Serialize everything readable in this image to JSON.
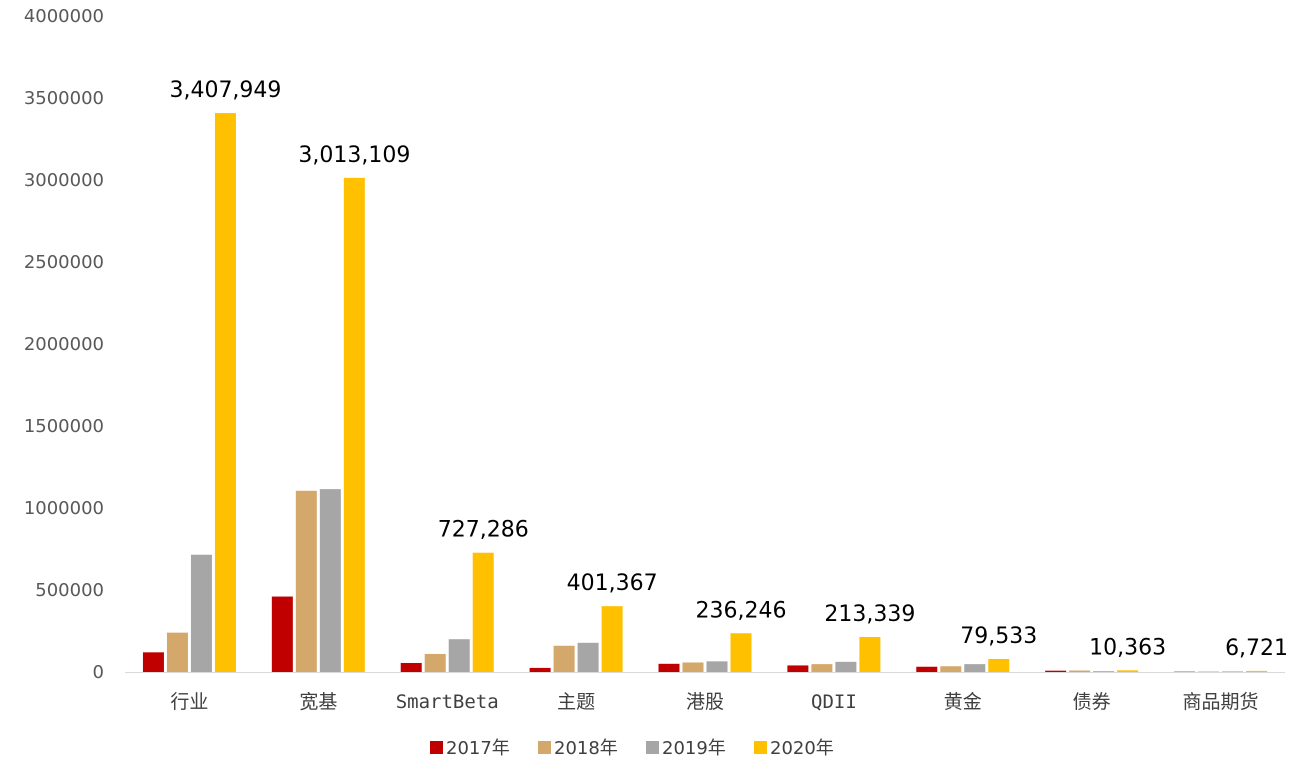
{
  "chart_data": {
    "type": "bar",
    "title": "",
    "xlabel": "",
    "ylabel": "",
    "ylim": [
      0,
      4000000
    ],
    "yticks": [
      "0",
      "500000",
      "1000000",
      "1500000",
      "2000000",
      "2500000",
      "3000000",
      "3500000",
      "4000000"
    ],
    "categories": [
      "行业",
      "宽基",
      "SmartBeta",
      "主题",
      "港股",
      "QDII",
      "黄金",
      "债券",
      "商品期货"
    ],
    "series": [
      {
        "name": "2017年",
        "color": "#c00000",
        "values": [
          120000,
          460000,
          55000,
          25000,
          50000,
          40000,
          32000,
          8000,
          2000
        ]
      },
      {
        "name": "2018年",
        "color": "#d4a76a",
        "values": [
          240000,
          1105000,
          110000,
          160000,
          58000,
          48000,
          35000,
          9000,
          3000
        ]
      },
      {
        "name": "2019年",
        "color": "#a6a6a6",
        "values": [
          715000,
          1115000,
          200000,
          178000,
          65000,
          62000,
          48000,
          5000,
          3500
        ]
      },
      {
        "name": "2020年",
        "color": "#ffc000",
        "values": [
          3407949,
          3013109,
          727286,
          401367,
          236246,
          213339,
          79533,
          10363,
          6721
        ]
      }
    ],
    "data_labels": [
      "3,407,949",
      "3,013,109",
      "727,286",
      "401,367",
      "236,246",
      "213,339",
      "79,533",
      "10,363",
      "6,721"
    ],
    "legend_position": "bottom",
    "grid": false
  }
}
